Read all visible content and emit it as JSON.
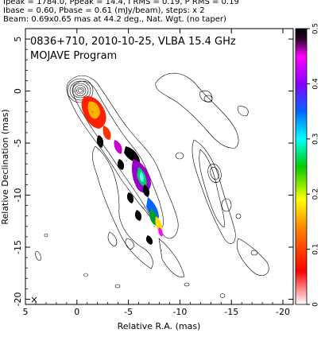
{
  "header": {
    "line1": "Ipeak = 1784.0, Ppeak = 14.4, I RMS = 0.19, P RMS = 0.19",
    "line2": "Ibase = 0.60, Pbase = 0.61 (mJy/beam), steps: x 2",
    "line3": "Beam: 0.69x0.65 mas at 44.2 deg., Nat. Wgt. (no taper)"
  },
  "chart_data": {
    "type": "contour_map",
    "title": "0836+710, 2010-10-25, VLBA 15.4 GHz",
    "subtitle": "MOJAVE Program",
    "xlabel": "Relative R.A. (mas)",
    "ylabel": "Relative Declination (mas)",
    "xlim": [
      5,
      -21
    ],
    "ylim": [
      -20.5,
      6
    ],
    "xticks": [
      5,
      0,
      -5,
      -10,
      -15,
      -20
    ],
    "yticks": [
      5,
      0,
      -5,
      -10,
      -15,
      -20
    ],
    "colorbar": {
      "min": 0,
      "max": 0.5,
      "ticks": [
        0,
        0.1,
        0.2,
        0.3,
        0.4,
        0.5
      ],
      "colors": [
        "#ffffff",
        "#ff0000",
        "#ff8800",
        "#ffff00",
        "#00cc00",
        "#00ffff",
        "#0066ff",
        "#8800ff",
        "#ff00ff",
        "#330033",
        "#000000"
      ]
    },
    "beam_marker": "×",
    "peak_ipeak_mjy_per_beam": 1784.0,
    "peak_ppeak_mjy_per_beam": 14.4,
    "jet_ridge_points": [
      {
        "x": 0.2,
        "y": 0.0
      },
      {
        "x": -1.5,
        "y": -2.0
      },
      {
        "x": -3.0,
        "y": -4.3
      },
      {
        "x": -4.8,
        "y": -6.7
      },
      {
        "x": -5.5,
        "y": -8.5
      },
      {
        "x": -6.5,
        "y": -11.2
      },
      {
        "x": -7.5,
        "y": -13.0
      },
      {
        "x": -8.2,
        "y": -15.3
      }
    ]
  }
}
